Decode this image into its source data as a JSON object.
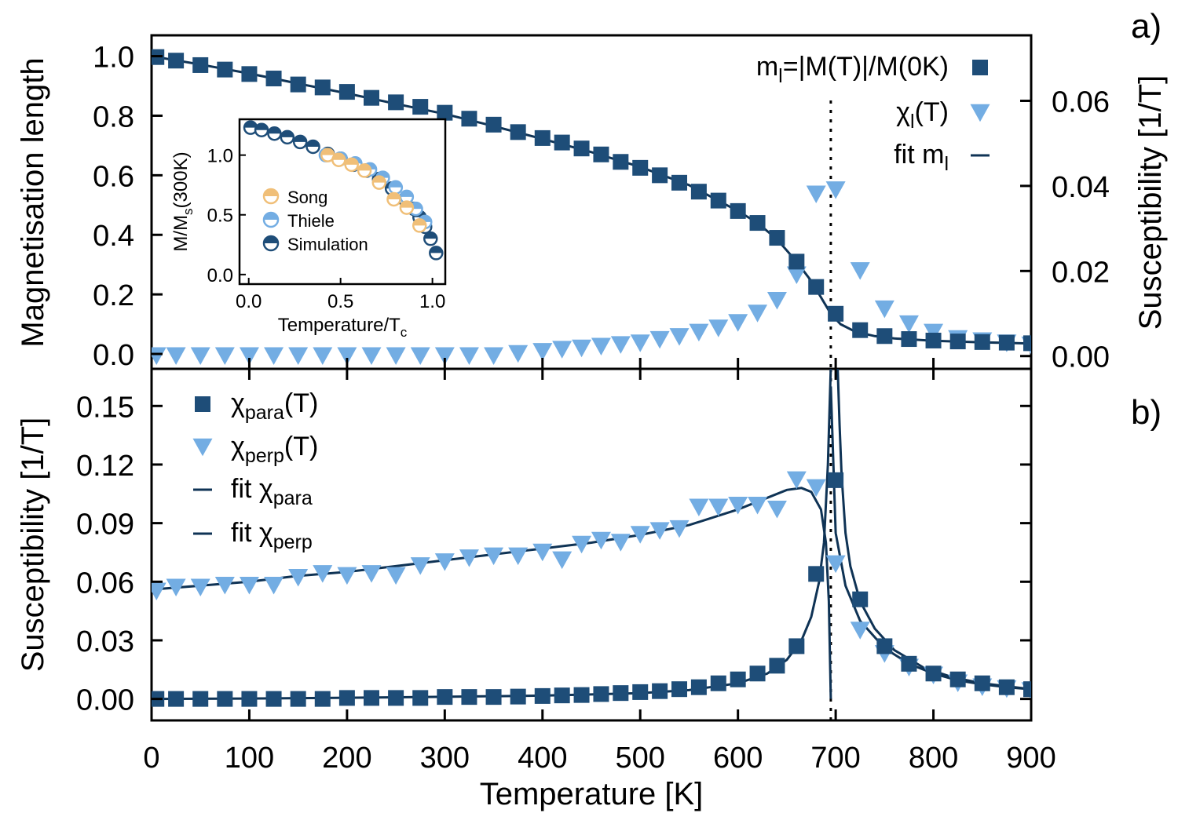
{
  "colors": {
    "dark": "#1e4d78",
    "light": "#73ade3",
    "song": "#f0bf78",
    "line": "#0f3355",
    "axis": "#000000"
  },
  "panel_labels": {
    "a": "a)",
    "b": "b)"
  },
  "chart_data": [
    {
      "id": "panel-a",
      "type": "scatter",
      "title": "",
      "xlabel": "",
      "ylabel": "Magnetisation length",
      "y2label": "Susceptibility [1/T]",
      "xlim": [
        0,
        900
      ],
      "ylim": [
        -0.05,
        1.07
      ],
      "y2lim": [
        -0.003,
        0.0754
      ],
      "xticks": [
        0,
        100,
        200,
        300,
        400,
        500,
        600,
        700,
        800,
        900
      ],
      "yticks": [
        0.0,
        0.2,
        0.4,
        0.6,
        0.8,
        1.0
      ],
      "ytick_labels": [
        "0.0",
        "0.2",
        "0.4",
        "0.6",
        "0.8",
        "1.0"
      ],
      "y2ticks": [
        0.0,
        0.02,
        0.04,
        0.06
      ],
      "y2tick_labels": [
        "0.00",
        "0.02",
        "0.04",
        "0.06"
      ],
      "vline_x": 695,
      "legend_position": "top-right",
      "legend": [
        {
          "label": "m_l=|M(T)|/M(0K)",
          "base": "m",
          "sub": "l",
          "rest": "=|M(T)|/M(0K)",
          "marker": "square"
        },
        {
          "label": "χ_l(T)",
          "base": "χ",
          "sub": "l",
          "rest": "(T)",
          "marker": "triangle"
        },
        {
          "label": "fit m_l",
          "base": "fit m",
          "sub": "l",
          "rest": "",
          "marker": "line"
        }
      ],
      "series": [
        {
          "name": "m_l",
          "marker": "square",
          "x": [
            5,
            25,
            50,
            75,
            100,
            125,
            150,
            175,
            200,
            225,
            250,
            275,
            300,
            325,
            350,
            375,
            400,
            420,
            440,
            460,
            480,
            500,
            520,
            540,
            560,
            580,
            600,
            620,
            640,
            660,
            680,
            700,
            725,
            750,
            775,
            800,
            825,
            850,
            875,
            900
          ],
          "y": [
            0.997,
            0.985,
            0.97,
            0.955,
            0.94,
            0.925,
            0.905,
            0.895,
            0.88,
            0.86,
            0.845,
            0.83,
            0.81,
            0.79,
            0.77,
            0.745,
            0.725,
            0.71,
            0.69,
            0.67,
            0.645,
            0.625,
            0.6,
            0.575,
            0.545,
            0.515,
            0.48,
            0.44,
            0.39,
            0.31,
            0.225,
            0.135,
            0.08,
            0.06,
            0.05,
            0.045,
            0.042,
            0.04,
            0.038,
            0.036
          ]
        },
        {
          "name": "χ_l(T)",
          "marker": "triangle",
          "axis": "y2",
          "x": [
            5,
            25,
            50,
            75,
            100,
            125,
            150,
            175,
            200,
            225,
            250,
            275,
            300,
            325,
            350,
            375,
            400,
            420,
            440,
            460,
            480,
            500,
            520,
            540,
            560,
            580,
            600,
            620,
            640,
            660,
            680,
            700,
            725,
            750,
            775,
            800,
            825,
            850,
            875,
            900
          ],
          "y": [
            0.0,
            0.0,
            0.0,
            0.0,
            0.0,
            0.0,
            0.0,
            0.0,
            0.0,
            0.0,
            0.0,
            0.0,
            0.0,
            0.0,
            0.0,
            0.0005,
            0.001,
            0.0015,
            0.0018,
            0.0022,
            0.0026,
            0.003,
            0.0038,
            0.0045,
            0.0055,
            0.0065,
            0.0078,
            0.01,
            0.013,
            0.019,
            0.038,
            0.039,
            0.02,
            0.011,
            0.0075,
            0.0055,
            0.004,
            0.0035,
            0.003,
            0.0025
          ]
        },
        {
          "name": "fit m_l",
          "marker": "line",
          "x": [
            0,
            50,
            100,
            150,
            200,
            250,
            300,
            350,
            400,
            450,
            500,
            550,
            600,
            620,
            640,
            660,
            675,
            685,
            695,
            705,
            720,
            740,
            760,
            800,
            850,
            900
          ],
          "y": [
            1.0,
            0.972,
            0.942,
            0.908,
            0.875,
            0.84,
            0.806,
            0.765,
            0.722,
            0.678,
            0.628,
            0.567,
            0.48,
            0.44,
            0.385,
            0.31,
            0.245,
            0.19,
            0.135,
            0.1,
            0.075,
            0.06,
            0.052,
            0.044,
            0.039,
            0.035
          ]
        }
      ]
    },
    {
      "id": "inset",
      "type": "scatter",
      "xlabel": "Temperature/T_c",
      "xlabel_base": "Temperature/T",
      "xlabel_sub": "c",
      "ylabel": "M/M_s(300K)",
      "ylabel_base": "M/M",
      "ylabel_sub": "s",
      "ylabel_rest": "(300K)",
      "xlim": [
        -0.05,
        1.07
      ],
      "ylim": [
        -0.08,
        1.3
      ],
      "xticks": [
        0.0,
        0.5,
        1.0
      ],
      "xtick_labels": [
        "0.0",
        "0.5",
        "1.0"
      ],
      "yticks": [
        0.0,
        0.5,
        1.0
      ],
      "ytick_labels": [
        "0.0",
        "0.5",
        "1.0"
      ],
      "legend_position": "bottom-left",
      "legend": [
        {
          "label": "Song",
          "marker": "half-circle-song"
        },
        {
          "label": "Thiele",
          "marker": "half-circle-thiele"
        },
        {
          "label": "Simulation",
          "marker": "half-circle-sim"
        }
      ],
      "series": [
        {
          "name": "Simulation",
          "x": [
            0.01,
            0.07,
            0.14,
            0.21,
            0.28,
            0.35,
            0.43,
            0.5,
            0.57,
            0.64,
            0.71,
            0.78,
            0.85,
            0.9,
            0.93,
            0.96,
            0.99,
            1.02
          ],
          "y": [
            1.23,
            1.21,
            1.18,
            1.15,
            1.11,
            1.07,
            1.01,
            0.97,
            0.92,
            0.87,
            0.8,
            0.72,
            0.63,
            0.55,
            0.48,
            0.4,
            0.3,
            0.18
          ]
        },
        {
          "name": "Thiele",
          "x": [
            0.42,
            0.5,
            0.58,
            0.66,
            0.73,
            0.8,
            0.86,
            0.91,
            0.96
          ],
          "y": [
            1.0,
            0.97,
            0.93,
            0.88,
            0.81,
            0.73,
            0.65,
            0.55,
            0.44
          ]
        },
        {
          "name": "Song",
          "x": [
            0.43,
            0.49,
            0.56,
            0.63,
            0.71,
            0.79,
            0.86,
            0.93
          ],
          "y": [
            1.0,
            0.96,
            0.92,
            0.87,
            0.77,
            0.63,
            0.56,
            0.41
          ]
        }
      ]
    },
    {
      "id": "panel-b",
      "type": "scatter",
      "xlabel": "Temperature [K]",
      "ylabel": "Susceptibility [1/T]",
      "xlim": [
        0,
        900
      ],
      "ylim": [
        -0.011,
        0.169
      ],
      "xticks": [
        0,
        100,
        200,
        300,
        400,
        500,
        600,
        700,
        800,
        900
      ],
      "xtick_labels": [
        "0",
        "100",
        "200",
        "300",
        "400",
        "500",
        "600",
        "700",
        "800",
        "900"
      ],
      "yticks": [
        0.0,
        0.03,
        0.06,
        0.09,
        0.12,
        0.15
      ],
      "ytick_labels": [
        "0.00",
        "0.03",
        "0.06",
        "0.09",
        "0.12",
        "0.15"
      ],
      "vline_x": 695,
      "legend_position": "top-left",
      "legend": [
        {
          "label": "χ_para(T)",
          "base": "χ",
          "sub": "para",
          "rest": "(T)",
          "marker": "square"
        },
        {
          "label": "χ_perp(T)",
          "base": "χ",
          "sub": "perp",
          "rest": "(T)",
          "marker": "triangle"
        },
        {
          "label": "fit χ_para",
          "base": "fit χ",
          "sub": "para",
          "rest": "",
          "marker": "line"
        },
        {
          "label": "fit χ_perp",
          "base": "fit χ",
          "sub": "perp",
          "rest": "",
          "marker": "line"
        }
      ],
      "series": [
        {
          "name": "χ_para(T)",
          "marker": "square",
          "x": [
            5,
            25,
            50,
            75,
            100,
            125,
            150,
            175,
            200,
            225,
            250,
            275,
            300,
            325,
            350,
            375,
            400,
            420,
            440,
            460,
            480,
            500,
            520,
            540,
            560,
            580,
            600,
            620,
            640,
            660,
            680,
            700,
            725,
            750,
            775,
            800,
            825,
            850,
            875,
            900
          ],
          "y": [
            0.0,
            0.0,
            0.0,
            0.0,
            0.0,
            0.0,
            0.0,
            0.0,
            0.0005,
            0.0005,
            0.0005,
            0.0005,
            0.001,
            0.001,
            0.001,
            0.0012,
            0.0015,
            0.0018,
            0.002,
            0.0025,
            0.003,
            0.0035,
            0.004,
            0.005,
            0.006,
            0.008,
            0.01,
            0.013,
            0.017,
            0.027,
            0.064,
            0.112,
            0.051,
            0.027,
            0.018,
            0.013,
            0.01,
            0.008,
            0.006,
            0.005
          ]
        },
        {
          "name": "χ_perp(T)",
          "marker": "triangle",
          "x": [
            5,
            25,
            50,
            75,
            100,
            125,
            150,
            175,
            200,
            225,
            250,
            275,
            300,
            325,
            350,
            375,
            400,
            420,
            440,
            460,
            480,
            500,
            520,
            540,
            560,
            580,
            600,
            620,
            640,
            660,
            680,
            700,
            725,
            750,
            775,
            800,
            825,
            850,
            875,
            900
          ],
          "y": [
            0.055,
            0.057,
            0.057,
            0.058,
            0.058,
            0.058,
            0.062,
            0.064,
            0.063,
            0.064,
            0.063,
            0.068,
            0.07,
            0.072,
            0.073,
            0.073,
            0.075,
            0.071,
            0.079,
            0.081,
            0.08,
            0.084,
            0.086,
            0.087,
            0.098,
            0.098,
            0.099,
            0.099,
            0.097,
            0.112,
            0.108,
            0.069,
            0.035,
            0.023,
            0.016,
            0.012,
            0.008,
            0.006,
            0.005,
            0.004
          ]
        },
        {
          "name": "fit χ_perp",
          "marker": "line",
          "x": [
            0,
            50,
            100,
            150,
            200,
            250,
            300,
            350,
            400,
            450,
            500,
            550,
            600,
            630,
            650,
            665,
            675,
            685,
            690,
            693,
            695
          ],
          "y": [
            0.056,
            0.058,
            0.06,
            0.063,
            0.065,
            0.068,
            0.071,
            0.074,
            0.077,
            0.08,
            0.084,
            0.089,
            0.097,
            0.103,
            0.107,
            0.108,
            0.106,
            0.097,
            0.08,
            0.05,
            0.0
          ],
          "tail_x": [
            695,
            700,
            710,
            725,
            750,
            775,
            800,
            825,
            850,
            875,
            900
          ],
          "tail_y": [
            0.16,
            0.085,
            0.058,
            0.04,
            0.026,
            0.018,
            0.013,
            0.0095,
            0.0075,
            0.006,
            0.005
          ]
        },
        {
          "name": "fit χ_para",
          "marker": "line",
          "x": [
            0,
            100,
            200,
            300,
            400,
            450,
            500,
            550,
            600,
            630,
            650,
            665,
            675,
            683,
            688,
            692,
            695,
            698,
            700,
            702,
            704,
            706,
            710,
            715,
            725,
            740,
            760,
            790,
            820,
            850,
            900
          ],
          "y": [
            0.0,
            0.0002,
            0.0006,
            0.0011,
            0.0017,
            0.0023,
            0.003,
            0.0045,
            0.008,
            0.013,
            0.02,
            0.03,
            0.042,
            0.06,
            0.08,
            0.12,
            0.17,
            0.17,
            0.17,
            0.17,
            0.14,
            0.115,
            0.085,
            0.068,
            0.05,
            0.036,
            0.025,
            0.016,
            0.011,
            0.008,
            0.005
          ]
        }
      ]
    }
  ]
}
